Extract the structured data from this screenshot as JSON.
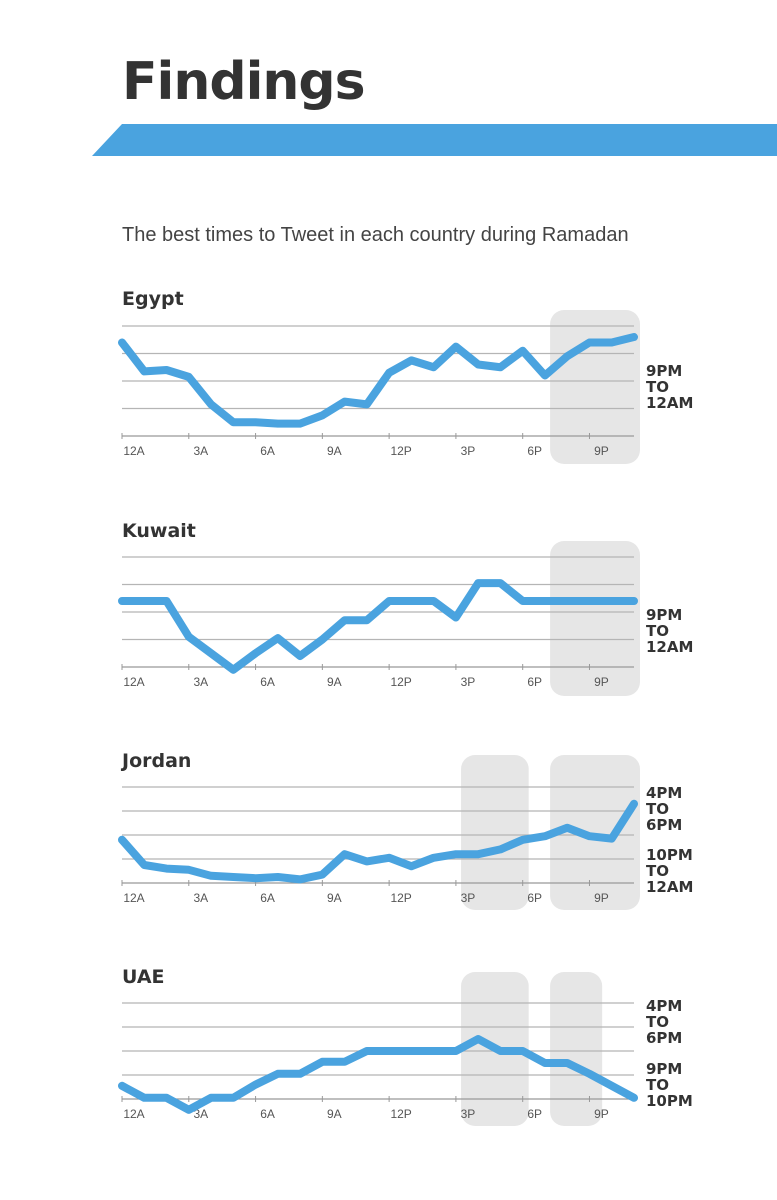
{
  "header": {
    "title": "Findings",
    "subtitle": "The best times to Tweet in each country during Ramadan"
  },
  "colors": {
    "accent": "#4aa3df",
    "text": "#333333",
    "grid": "#b5b5b5",
    "highlight": "#e6e6e6"
  },
  "chart_data": [
    {
      "type": "line",
      "title": "Egypt",
      "ticks": [
        "12A",
        "3A",
        "6A",
        "9A",
        "12P",
        "3P",
        "6P",
        "9P"
      ],
      "xlim": [
        0,
        23
      ],
      "ylim": [
        0,
        4
      ],
      "x": [
        0,
        1,
        2,
        3,
        4,
        5,
        6,
        7,
        8,
        9,
        10,
        11,
        12,
        13,
        14,
        15,
        16,
        17,
        18,
        19,
        20,
        21,
        22,
        23
      ],
      "values": [
        3.4,
        2.35,
        2.4,
        2.15,
        1.15,
        0.5,
        0.5,
        0.45,
        0.45,
        0.75,
        1.25,
        1.15,
        2.3,
        2.75,
        2.5,
        3.25,
        2.6,
        2.5,
        3.1,
        2.2,
        2.9,
        3.4,
        3.4,
        3.6
      ],
      "highlights": [
        [
          19.5,
          23
        ]
      ],
      "window_labels": [
        {
          "lines": [
            "9PM",
            "TO",
            "12AM"
          ],
          "y": 1.8
        }
      ]
    },
    {
      "type": "line",
      "title": "Kuwait",
      "ticks": [
        "12A",
        "3A",
        "6A",
        "9A",
        "12P",
        "3P",
        "6P",
        "9P"
      ],
      "xlim": [
        0,
        23
      ],
      "ylim": [
        0,
        4
      ],
      "x": [
        0,
        1,
        2,
        3,
        4,
        5,
        6,
        7,
        8,
        9,
        10,
        11,
        12,
        13,
        14,
        15,
        16,
        17,
        18,
        19,
        20,
        21,
        22,
        23
      ],
      "values": [
        2.4,
        2.4,
        2.4,
        1.1,
        0.5,
        -0.1,
        0.5,
        1.05,
        0.4,
        1.0,
        1.7,
        1.7,
        2.4,
        2.4,
        2.4,
        1.8,
        3.05,
        3.05,
        2.4,
        2.4,
        2.4,
        2.4,
        2.4,
        2.4
      ],
      "highlights": [
        [
          19.5,
          23
        ]
      ],
      "window_labels": [
        {
          "lines": [
            "9PM",
            "TO",
            "12AM"
          ],
          "y": 1.3
        }
      ]
    },
    {
      "type": "line",
      "title": "Jordan",
      "ticks": [
        "12A",
        "3A",
        "6A",
        "9A",
        "12P",
        "3P",
        "6P",
        "9P"
      ],
      "xlim": [
        0,
        23
      ],
      "ylim": [
        0,
        4
      ],
      "x": [
        0,
        1,
        2,
        3,
        4,
        5,
        6,
        7,
        8,
        9,
        10,
        11,
        12,
        13,
        14,
        15,
        16,
        17,
        18,
        19,
        20,
        21,
        22,
        23
      ],
      "values": [
        1.8,
        0.75,
        0.6,
        0.55,
        0.3,
        0.25,
        0.2,
        0.25,
        0.15,
        0.35,
        1.2,
        0.9,
        1.05,
        0.7,
        1.05,
        1.2,
        1.2,
        1.4,
        1.8,
        1.95,
        2.3,
        1.95,
        1.85,
        3.3
      ],
      "highlights": [
        [
          15.5,
          18
        ],
        [
          19.5,
          23
        ]
      ],
      "window_labels": [
        {
          "lines": [
            "4PM",
            "TO",
            "6PM"
          ],
          "y": 3.1
        },
        {
          "lines": [
            "10PM",
            "TO",
            "12AM"
          ],
          "y": 0.5
        }
      ]
    },
    {
      "type": "line",
      "title": "UAE",
      "ticks": [
        "12A",
        "3A",
        "6A",
        "9A",
        "12P",
        "3P",
        "6P",
        "9P"
      ],
      "xlim": [
        0,
        23
      ],
      "ylim": [
        0,
        4
      ],
      "x": [
        0,
        1,
        2,
        3,
        4,
        5,
        6,
        7,
        8,
        9,
        10,
        11,
        12,
        13,
        14,
        15,
        16,
        17,
        18,
        19,
        20,
        21,
        22,
        23
      ],
      "values": [
        0.55,
        0.05,
        0.05,
        -0.45,
        0.05,
        0.05,
        0.6,
        1.05,
        1.05,
        1.55,
        1.55,
        2.0,
        2.0,
        2.0,
        2.0,
        2.0,
        2.5,
        2.0,
        2.0,
        1.5,
        1.5,
        1.05,
        0.55,
        0.05
      ],
      "highlights": [
        [
          15.5,
          18
        ],
        [
          19.5,
          21.3
        ]
      ],
      "window_labels": [
        {
          "lines": [
            "4PM",
            "TO",
            "6PM"
          ],
          "y": 3.2
        },
        {
          "lines": [
            "9PM",
            "TO",
            "10PM"
          ],
          "y": 0.6
        }
      ]
    }
  ]
}
